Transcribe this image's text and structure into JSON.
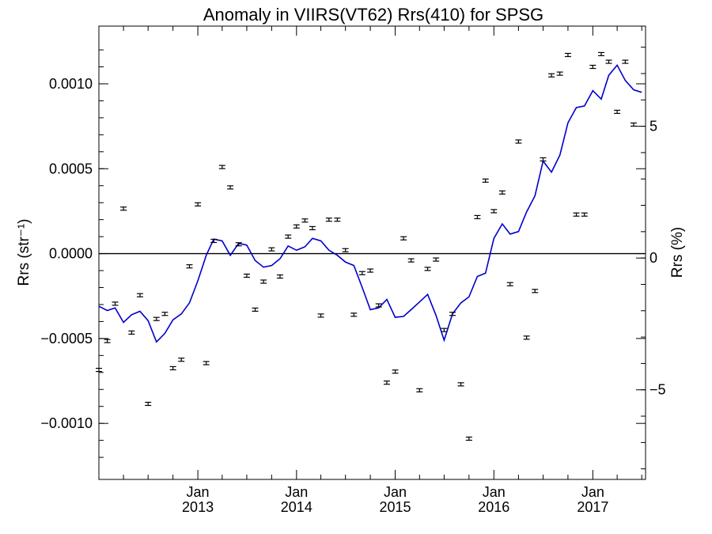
{
  "chart_data": {
    "type": "scatter",
    "title": "Anomaly in VIIRS(VT62) Rrs(410) for SPSG",
    "ylabel_left": "Rrs (str⁻¹)",
    "ylabel_right": "Rrs (%)",
    "x_range": [
      "2012-01-01",
      "2017-07-15"
    ],
    "ylim_left": [
      -0.00133,
      0.00134
    ],
    "ylim_right": [
      -8.4,
      8.8
    ],
    "left_ticks": [
      {
        "value": 0.001,
        "label": "0.0010"
      },
      {
        "value": 0.0005,
        "label": "0.0005"
      },
      {
        "value": 0.0,
        "label": "0.0000"
      },
      {
        "value": -0.0005,
        "label": "−0.0005"
      },
      {
        "value": -0.001,
        "label": "−0.0010"
      }
    ],
    "right_ticks": [
      {
        "value": 5,
        "label": "5"
      },
      {
        "value": 0,
        "label": "0"
      },
      {
        "value": -5,
        "label": "−5"
      }
    ],
    "x_ticks": [
      {
        "date": "2013-01-01",
        "month": "Jan",
        "year": "2013"
      },
      {
        "date": "2014-01-01",
        "month": "Jan",
        "year": "2014"
      },
      {
        "date": "2015-01-01",
        "month": "Jan",
        "year": "2015"
      },
      {
        "date": "2016-01-01",
        "month": "Jan",
        "year": "2016"
      },
      {
        "date": "2017-01-01",
        "month": "Jan",
        "year": "2017"
      }
    ],
    "zero_line": 0,
    "line_color": "#0000cc",
    "series": [
      {
        "kind": "scatter_errorbar",
        "axis": "left",
        "color": "#000000",
        "points": [
          [
            "2012-01-01",
            -0.000685
          ],
          [
            "2012-02-01",
            -0.000515
          ],
          [
            "2012-03-01",
            -0.000295
          ],
          [
            "2012-04-01",
            0.000265
          ],
          [
            "2012-05-01",
            -0.000465
          ],
          [
            "2012-06-01",
            -0.000245
          ],
          [
            "2012-07-01",
            -0.000885
          ],
          [
            "2012-08-01",
            -0.000385
          ],
          [
            "2012-09-01",
            -0.000355
          ],
          [
            "2012-10-01",
            -0.000675
          ],
          [
            "2012-11-01",
            -0.000625
          ],
          [
            "2012-12-01",
            -7.5e-05
          ],
          [
            "2013-01-01",
            0.00029
          ],
          [
            "2013-02-01",
            -0.000645
          ],
          [
            "2013-03-01",
            7.5e-05
          ],
          [
            "2013-04-01",
            0.00051
          ],
          [
            "2013-05-01",
            0.00039
          ],
          [
            "2013-06-01",
            5.5e-05
          ],
          [
            "2013-07-01",
            -0.00013
          ],
          [
            "2013-08-01",
            -0.00033
          ],
          [
            "2013-09-01",
            -0.000165
          ],
          [
            "2013-10-01",
            2.5e-05
          ],
          [
            "2013-11-01",
            -0.000135
          ],
          [
            "2013-12-01",
            0.0001
          ],
          [
            "2014-01-01",
            0.00016
          ],
          [
            "2014-02-01",
            0.000195
          ],
          [
            "2014-03-01",
            0.00015
          ],
          [
            "2014-04-01",
            -0.000365
          ],
          [
            "2014-05-01",
            0.0002
          ],
          [
            "2014-06-01",
            0.0002
          ],
          [
            "2014-07-01",
            2e-05
          ],
          [
            "2014-08-01",
            -0.00036
          ],
          [
            "2014-09-01",
            -0.000115
          ],
          [
            "2014-10-01",
            -0.0001
          ],
          [
            "2014-11-01",
            -0.000305
          ],
          [
            "2014-12-01",
            -0.00076
          ],
          [
            "2015-01-01",
            -0.000695
          ],
          [
            "2015-02-01",
            9e-05
          ],
          [
            "2015-03-01",
            -4e-05
          ],
          [
            "2015-04-01",
            -0.000805
          ],
          [
            "2015-05-01",
            -9e-05
          ],
          [
            "2015-06-01",
            -3.5e-05
          ],
          [
            "2015-07-01",
            -0.00045
          ],
          [
            "2015-08-01",
            -0.000355
          ],
          [
            "2015-09-01",
            -0.00077
          ],
          [
            "2015-10-01",
            -0.00109
          ],
          [
            "2015-11-01",
            0.000215
          ],
          [
            "2015-12-01",
            0.00043
          ],
          [
            "2016-01-01",
            0.00025
          ],
          [
            "2016-02-01",
            0.00036
          ],
          [
            "2016-03-01",
            -0.00018
          ],
          [
            "2016-04-01",
            0.00066
          ],
          [
            "2016-05-01",
            -0.000495
          ],
          [
            "2016-06-01",
            -0.00022
          ],
          [
            "2016-07-01",
            0.000555
          ],
          [
            "2016-08-01",
            0.00105
          ],
          [
            "2016-09-01",
            0.00106
          ],
          [
            "2016-10-01",
            0.00117
          ],
          [
            "2016-11-01",
            0.00023
          ],
          [
            "2016-12-01",
            0.00023
          ],
          [
            "2017-01-01",
            0.0011
          ],
          [
            "2017-02-01",
            0.001175
          ],
          [
            "2017-03-01",
            0.00113
          ],
          [
            "2017-04-01",
            0.000835
          ],
          [
            "2017-05-01",
            0.00113
          ],
          [
            "2017-06-01",
            0.00076
          ]
        ]
      },
      {
        "kind": "line",
        "axis": "left",
        "color": "#0000cc",
        "points": [
          [
            "2012-01-01",
            -0.00031
          ],
          [
            "2012-02-01",
            -0.000335
          ],
          [
            "2012-03-01",
            -0.00032
          ],
          [
            "2012-04-01",
            -0.000405
          ],
          [
            "2012-05-01",
            -0.00036
          ],
          [
            "2012-06-01",
            -0.00034
          ],
          [
            "2012-07-01",
            -0.000395
          ],
          [
            "2012-08-01",
            -0.00052
          ],
          [
            "2012-09-01",
            -0.00047
          ],
          [
            "2012-10-01",
            -0.00039
          ],
          [
            "2012-11-01",
            -0.000355
          ],
          [
            "2012-12-01",
            -0.00029
          ],
          [
            "2013-01-01",
            -0.00016
          ],
          [
            "2013-02-01",
            -1e-05
          ],
          [
            "2013-03-01",
            8.5e-05
          ],
          [
            "2013-04-01",
            7.5e-05
          ],
          [
            "2013-05-01",
            -1e-05
          ],
          [
            "2013-06-01",
            6e-05
          ],
          [
            "2013-07-01",
            5e-05
          ],
          [
            "2013-08-01",
            -4e-05
          ],
          [
            "2013-09-01",
            -8e-05
          ],
          [
            "2013-10-01",
            -7e-05
          ],
          [
            "2013-11-01",
            -3e-05
          ],
          [
            "2013-12-01",
            4.5e-05
          ],
          [
            "2014-01-01",
            2e-05
          ],
          [
            "2014-02-01",
            4e-05
          ],
          [
            "2014-03-01",
            9e-05
          ],
          [
            "2014-04-01",
            7.5e-05
          ],
          [
            "2014-05-01",
            2e-05
          ],
          [
            "2014-06-01",
            -1e-05
          ],
          [
            "2014-07-01",
            -5e-05
          ],
          [
            "2014-08-01",
            -7e-05
          ],
          [
            "2014-09-01",
            -0.0002
          ],
          [
            "2014-10-01",
            -0.00033
          ],
          [
            "2014-11-01",
            -0.00032
          ],
          [
            "2014-12-01",
            -0.00027
          ],
          [
            "2015-01-01",
            -0.000375
          ],
          [
            "2015-02-01",
            -0.00037
          ],
          [
            "2015-03-01",
            -0.00033
          ],
          [
            "2015-04-01",
            -0.000285
          ],
          [
            "2015-05-01",
            -0.00024
          ],
          [
            "2015-06-01",
            -0.000365
          ],
          [
            "2015-07-01",
            -0.00051
          ],
          [
            "2015-08-01",
            -0.000355
          ],
          [
            "2015-09-01",
            -0.00029
          ],
          [
            "2015-10-01",
            -0.000255
          ],
          [
            "2015-11-01",
            -0.000135
          ],
          [
            "2015-12-01",
            -0.000115
          ],
          [
            "2016-01-01",
            9e-05
          ],
          [
            "2016-02-01",
            0.000175
          ],
          [
            "2016-03-01",
            0.000115
          ],
          [
            "2016-04-01",
            0.00013
          ],
          [
            "2016-05-01",
            0.000245
          ],
          [
            "2016-06-01",
            0.00034
          ],
          [
            "2016-07-01",
            0.000545
          ],
          [
            "2016-08-01",
            0.00048
          ],
          [
            "2016-09-01",
            0.00058
          ],
          [
            "2016-10-01",
            0.00077
          ],
          [
            "2016-11-01",
            0.00086
          ],
          [
            "2016-12-01",
            0.00087
          ],
          [
            "2017-01-01",
            0.00096
          ],
          [
            "2017-02-01",
            0.00091
          ],
          [
            "2017-03-01",
            0.00105
          ],
          [
            "2017-04-01",
            0.00111
          ],
          [
            "2017-05-01",
            0.00102
          ],
          [
            "2017-06-01",
            0.000965
          ],
          [
            "2017-07-01",
            0.00095
          ]
        ]
      }
    ]
  }
}
